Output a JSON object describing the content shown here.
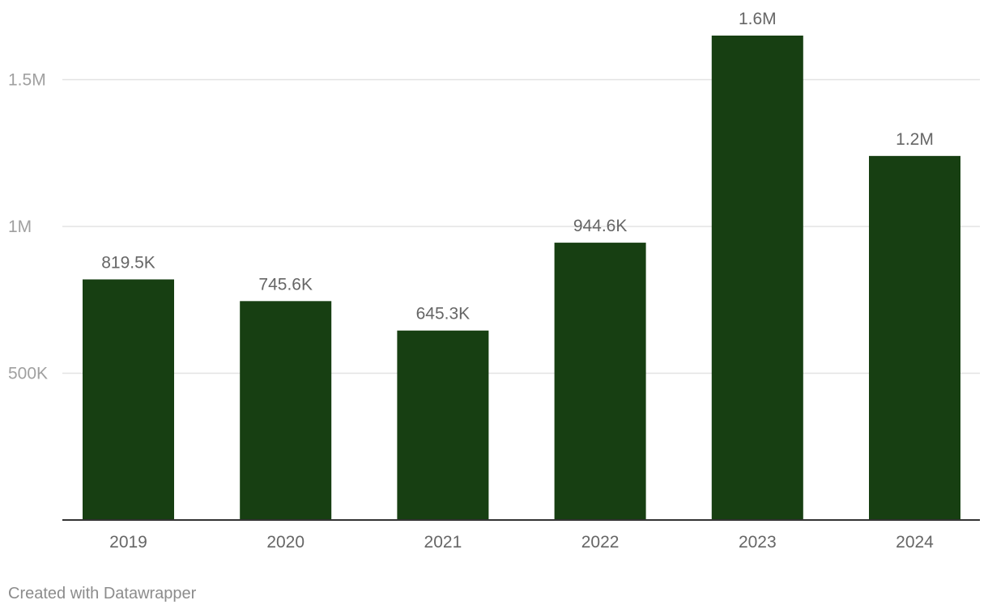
{
  "chart_data": {
    "type": "bar",
    "categories": [
      "2019",
      "2020",
      "2021",
      "2022",
      "2023",
      "2024"
    ],
    "values": [
      819500,
      745600,
      645300,
      944600,
      1650000,
      1240000
    ],
    "value_labels": [
      "819.5K",
      "745.6K",
      "645.3K",
      "944.6K",
      "1.6M",
      "1.2M"
    ],
    "y_ticks": [
      {
        "value": 500000,
        "label": "500K"
      },
      {
        "value": 1000000,
        "label": "1M"
      },
      {
        "value": 1500000,
        "label": "1.5M"
      }
    ],
    "ylim": [
      0,
      1650000
    ],
    "grid": true,
    "legend": "none",
    "colors": {
      "bar": "#173f12",
      "grid": "#e3e3e3",
      "axis": "#333333",
      "tick_label": "#a0a0a0",
      "category_label": "#666666",
      "value_label": "#666666"
    }
  },
  "footer": {
    "credit": "Created with Datawrapper"
  }
}
